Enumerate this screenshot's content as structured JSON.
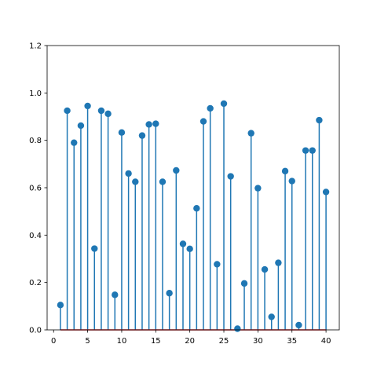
{
  "chart_data": {
    "type": "stem",
    "title": "",
    "xlabel": "",
    "ylabel": "",
    "xlim": [
      -0.95,
      41.95
    ],
    "ylim": [
      0.0,
      1.2
    ],
    "xticks": [
      "0",
      "5",
      "10",
      "15",
      "20",
      "25",
      "30",
      "35",
      "40"
    ],
    "yticks": [
      "0.0",
      "0.2",
      "0.4",
      "0.6",
      "0.8",
      "1.0",
      "1.2"
    ],
    "grid": false,
    "x": [
      1,
      2,
      3,
      4,
      5,
      6,
      7,
      8,
      9,
      10,
      11,
      12,
      13,
      14,
      15,
      16,
      17,
      18,
      19,
      20,
      21,
      22,
      23,
      24,
      25,
      26,
      27,
      28,
      29,
      30,
      31,
      32,
      33,
      34,
      35,
      36,
      37,
      38,
      39,
      40
    ],
    "values": [
      0.105,
      0.925,
      0.79,
      0.862,
      0.945,
      0.343,
      0.925,
      0.912,
      0.148,
      0.833,
      0.66,
      0.625,
      0.82,
      0.867,
      0.87,
      0.625,
      0.155,
      0.673,
      0.363,
      0.342,
      0.513,
      0.88,
      0.935,
      0.277,
      0.955,
      0.648,
      0.005,
      0.196,
      0.83,
      0.598,
      0.255,
      0.055,
      0.283,
      0.67,
      0.628,
      0.02,
      0.757,
      0.757,
      0.885,
      0.582
    ],
    "colors": {
      "stem": "#1f77b4",
      "marker": "#1f77b4",
      "baseline": "#d62728"
    }
  }
}
